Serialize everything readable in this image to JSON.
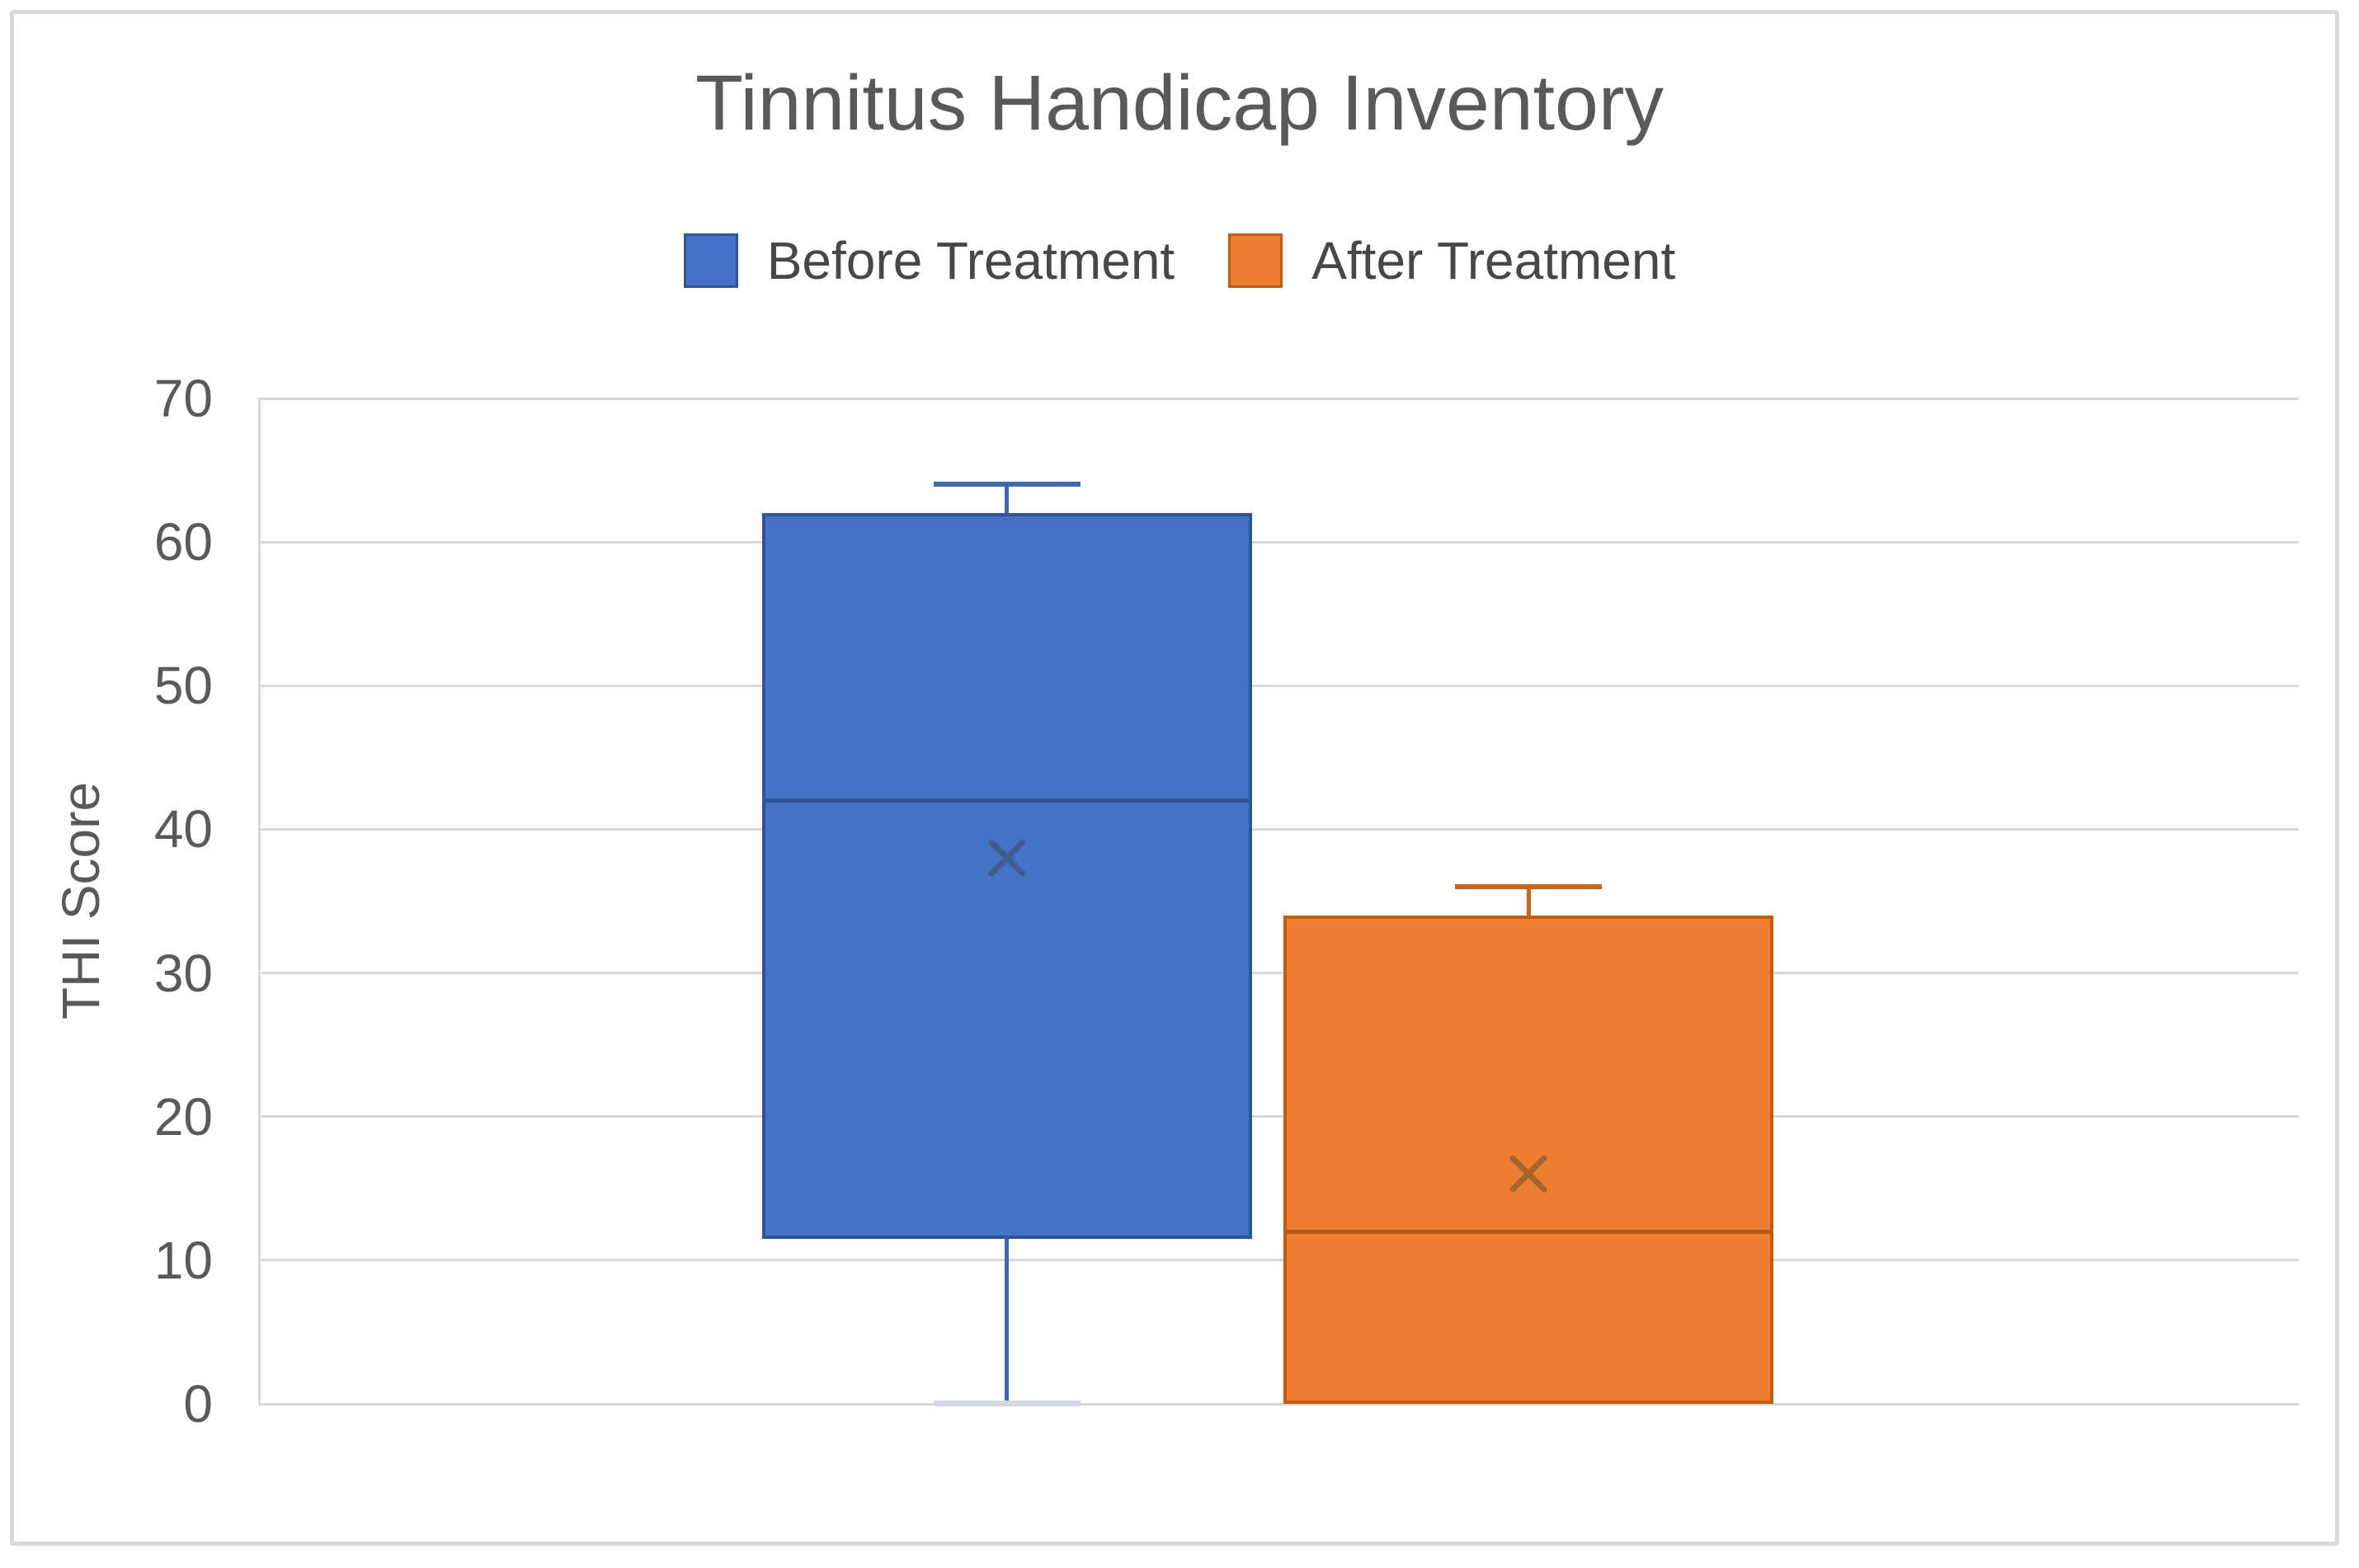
{
  "chart_data": {
    "type": "boxplot",
    "title": "Tinnitus Handicap Inventory",
    "ylabel": "THI Score",
    "ylim": [
      0,
      70
    ],
    "yticks": [
      0,
      10,
      20,
      30,
      40,
      50,
      60,
      70
    ],
    "grid": true,
    "legend_position": "top-center",
    "background_color": "#ffffff",
    "frame_color": "#d9d9d9",
    "gridline_color": "#d9d9d9",
    "axis_text_color": "#595959",
    "title_color": "#595959",
    "series": [
      {
        "name": "Before Treatment",
        "color": "#4472C4",
        "border_color": "#2F5597",
        "median_color": "#2F5597",
        "whisker_color": "#3E69B0",
        "lower_cap_color": "#D2D7E0",
        "mean_marker_color": "#3F5E8E",
        "min": 0,
        "q1": 11.5,
        "median": 42,
        "mean": 38,
        "q3": 62,
        "max": 64
      },
      {
        "name": "After Treatment",
        "color": "#ED7D31",
        "border_color": "#C55A11",
        "median_color": "#BC5B17",
        "whisker_color": "#C9641D",
        "lower_cap_color": "#F5E3D5",
        "mean_marker_color": "#A6652C",
        "min": 0,
        "q1": 0,
        "median": 12,
        "mean": 16,
        "q3": 34,
        "max": 36
      }
    ]
  }
}
